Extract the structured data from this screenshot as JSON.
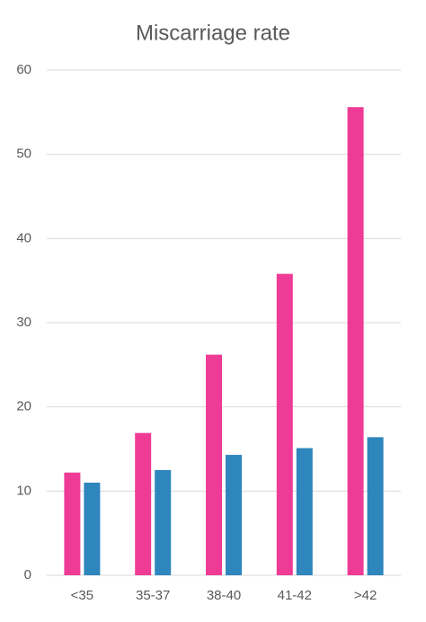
{
  "chart_data": {
    "type": "bar",
    "title": "Miscarriage rate",
    "categories": [
      "<35",
      "35-37",
      "38-40",
      "41-42",
      ">42"
    ],
    "series": [
      {
        "color": "#ee3c96",
        "values": [
          12.2,
          16.9,
          26.2,
          35.8,
          55.6
        ]
      },
      {
        "color": "#2e86bd",
        "values": [
          11.0,
          12.5,
          14.3,
          15.1,
          16.4
        ]
      }
    ],
    "ylim": [
      0,
      60
    ],
    "yticks": [
      0,
      10,
      20,
      30,
      40,
      50,
      60
    ],
    "grid": true
  }
}
